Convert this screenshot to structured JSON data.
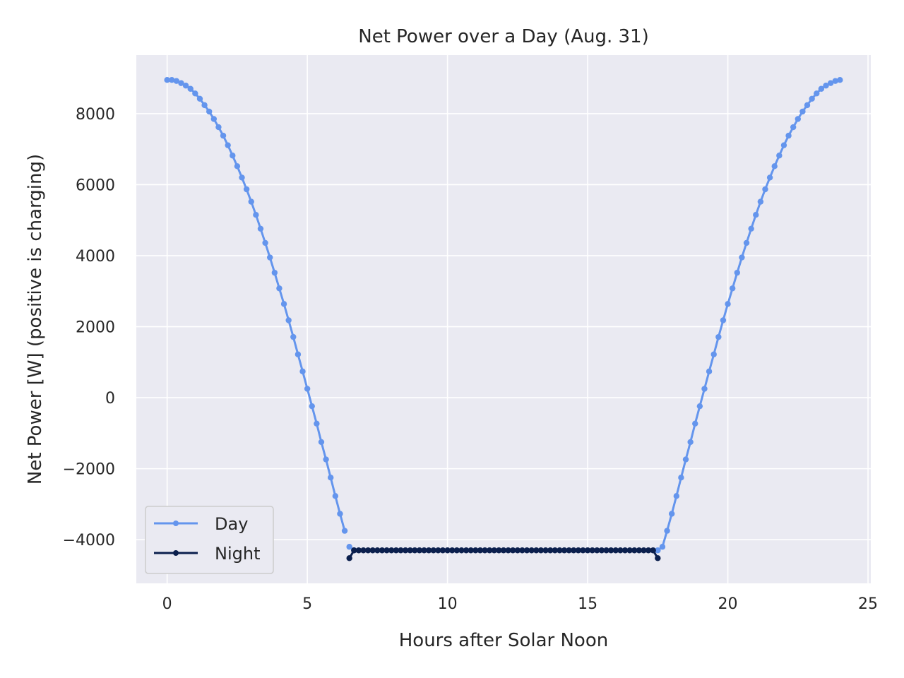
{
  "chart_data": {
    "type": "line",
    "title": "Net Power over a Day (Aug. 31)",
    "xlabel": "Hours after Solar Noon",
    "ylabel": "Net Power [W] (positive is charging)",
    "xlim": [
      -1.1,
      25.1
    ],
    "ylim": [
      -5230,
      9650
    ],
    "xticks": [
      0,
      5,
      10,
      15,
      20,
      25
    ],
    "xtick_labels": [
      "0",
      "5",
      "10",
      "15",
      "20",
      "25"
    ],
    "yticks": [
      -4000,
      -2000,
      0,
      2000,
      4000,
      6000,
      8000
    ],
    "ytick_labels": [
      "−4000",
      "−2000",
      "0",
      "2000",
      "4000",
      "6000",
      "8000"
    ],
    "grid": true,
    "background": "#eaeaf2",
    "legend_position": "lower-left",
    "series": [
      {
        "name": "Day",
        "color": "#6495ed",
        "segments": [
          {
            "x": [
              0,
              0.1667,
              0.3333,
              0.5,
              0.6667,
              0.8333,
              1.0,
              1.1667,
              1.3333,
              1.5,
              1.6667,
              1.8333,
              2.0,
              2.1667,
              2.3333,
              2.5,
              2.6667,
              2.8333,
              3.0,
              3.1667,
              3.3333,
              3.5,
              3.6667,
              3.8333,
              4.0,
              4.1667,
              4.3333,
              4.5,
              4.6667,
              4.8333,
              5.0,
              5.1667,
              5.3333,
              5.5,
              5.6667,
              5.8333,
              6.0,
              6.1667,
              6.3333
            ],
            "y": [
              8950,
              8950,
              8920,
              8860,
              8790,
              8700,
              8570,
              8420,
              8240,
              8060,
              7850,
              7620,
              7380,
              7110,
              6820,
              6520,
              6200,
              5870,
              5520,
              5150,
              4760,
              4360,
              3950,
              3520,
              3080,
              2640,
              2180,
              1710,
              1220,
              740,
              250,
              -240,
              -730,
              -1250,
              -1740,
              -2250,
              -2770,
              -3270,
              -3750
            ]
          },
          {
            "x": [
              6.5,
              6.6667
            ],
            "y": [
              -4200,
              -4300
            ]
          },
          {
            "x": [
              17.5,
              17.6667,
              17.8333,
              18.0,
              18.1667,
              18.3333,
              18.5,
              18.6667,
              18.8333,
              19.0,
              19.1667,
              19.3333,
              19.5,
              19.6667,
              19.8333,
              20.0,
              20.1667,
              20.3333,
              20.5,
              20.6667,
              20.8333,
              21.0,
              21.1667,
              21.3333,
              21.5,
              21.6667,
              21.8333,
              22.0,
              22.1667,
              22.3333,
              22.5,
              22.6667,
              22.8333,
              23.0,
              23.1667,
              23.3333,
              23.5,
              23.6667,
              23.8333,
              24.0
            ],
            "y": [
              -4300,
              -4200,
              -3750,
              -3270,
              -2770,
              -2250,
              -1740,
              -1250,
              -730,
              -240,
              250,
              740,
              1220,
              1710,
              2180,
              2640,
              3080,
              3520,
              3950,
              4360,
              4760,
              5150,
              5520,
              5870,
              6200,
              6520,
              6820,
              7110,
              7380,
              7620,
              7850,
              8060,
              8240,
              8420,
              8570,
              8700,
              8790,
              8860,
              8920,
              8950
            ]
          }
        ]
      },
      {
        "name": "Night",
        "color": "#0b1f4d",
        "segments": [
          {
            "x": [
              6.5,
              6.6667,
              6.8333,
              7.0,
              7.1667,
              7.3333,
              7.5,
              7.6667,
              7.8333,
              8.0,
              8.1667,
              8.3333,
              8.5,
              8.6667,
              8.8333,
              9.0,
              9.1667,
              9.3333,
              9.5,
              9.6667,
              9.8333,
              10.0,
              10.1667,
              10.3333,
              10.5,
              10.6667,
              10.8333,
              11.0,
              11.1667,
              11.3333,
              11.5,
              11.6667,
              11.8333,
              12.0,
              12.1667,
              12.3333,
              12.5,
              12.6667,
              12.8333,
              13.0,
              13.1667,
              13.3333,
              13.5,
              13.6667,
              13.8333,
              14.0,
              14.1667,
              14.3333,
              14.5,
              14.6667,
              14.8333,
              15.0,
              15.1667,
              15.3333,
              15.5,
              15.6667,
              15.8333,
              16.0,
              16.1667,
              16.3333,
              16.5,
              16.6667,
              16.8333,
              17.0,
              17.1667,
              17.3333,
              17.5
            ],
            "y": [
              -4520,
              -4300,
              -4300,
              -4300,
              -4300,
              -4300,
              -4300,
              -4300,
              -4300,
              -4300,
              -4300,
              -4300,
              -4300,
              -4300,
              -4300,
              -4300,
              -4300,
              -4300,
              -4300,
              -4300,
              -4300,
              -4300,
              -4300,
              -4300,
              -4300,
              -4300,
              -4300,
              -4300,
              -4300,
              -4300,
              -4300,
              -4300,
              -4300,
              -4300,
              -4300,
              -4300,
              -4300,
              -4300,
              -4300,
              -4300,
              -4300,
              -4300,
              -4300,
              -4300,
              -4300,
              -4300,
              -4300,
              -4300,
              -4300,
              -4300,
              -4300,
              -4300,
              -4300,
              -4300,
              -4300,
              -4300,
              -4300,
              -4300,
              -4300,
              -4300,
              -4300,
              -4300,
              -4300,
              -4300,
              -4300,
              -4300,
              -4520
            ]
          }
        ]
      }
    ]
  }
}
